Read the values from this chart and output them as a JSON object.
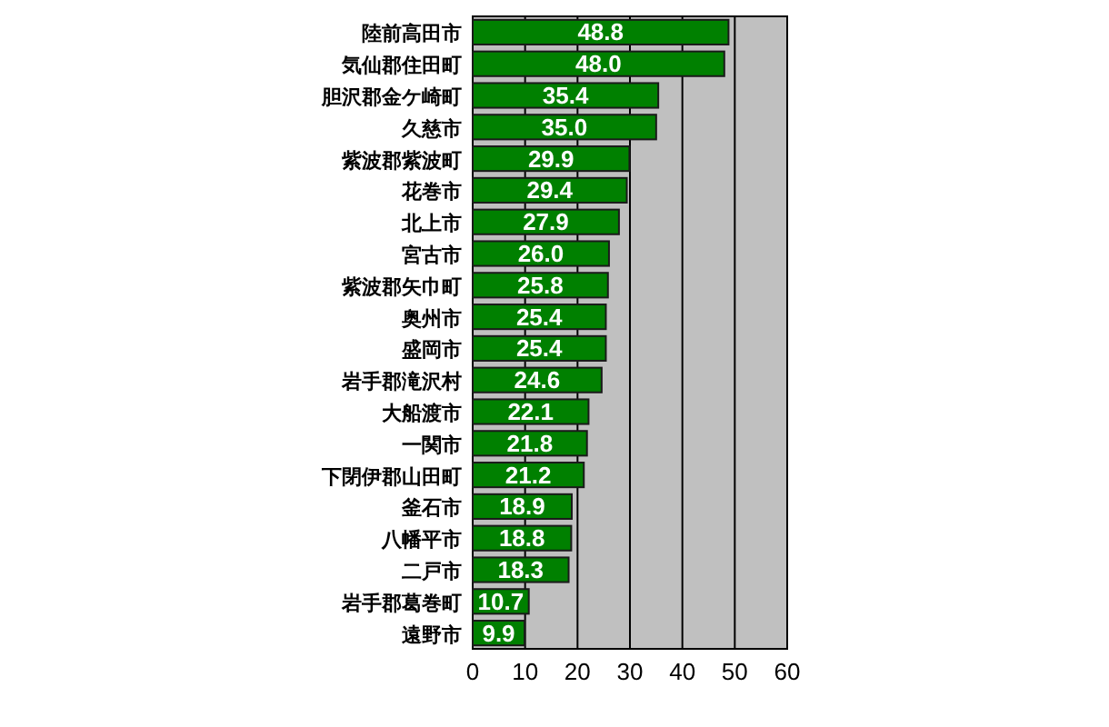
{
  "chart_data": {
    "type": "bar",
    "orientation": "horizontal",
    "categories": [
      "陸前高田市",
      "気仙郡住田町",
      "胆沢郡金ケ崎町",
      "久慈市",
      "紫波郡紫波町",
      "花巻市",
      "北上市",
      "宮古市",
      "紫波郡矢巾町",
      "奥州市",
      "盛岡市",
      "岩手郡滝沢村",
      "大船渡市",
      "一関市",
      "下閉伊郡山田町",
      "釜石市",
      "八幡平市",
      "二戸市",
      "岩手郡葛巻町",
      "遠野市"
    ],
    "values": [
      48.8,
      48.0,
      35.4,
      35.0,
      29.9,
      29.4,
      27.9,
      26.0,
      25.8,
      25.4,
      25.4,
      24.6,
      22.1,
      21.8,
      21.2,
      18.9,
      18.8,
      18.3,
      10.7,
      9.9
    ],
    "color": "#008000",
    "xlim": [
      0,
      60
    ],
    "xticks": [
      0,
      10,
      20,
      30,
      40,
      50,
      60
    ],
    "grid": "x",
    "value_labels": [
      "48.8",
      "48.0",
      "35.4",
      "35.0",
      "29.9",
      "29.4",
      "27.9",
      "26.0",
      "25.8",
      "25.4",
      "25.4",
      "24.6",
      "22.1",
      "21.8",
      "21.2",
      "18.9",
      "18.8",
      "18.3",
      "10.7",
      "9.9"
    ]
  }
}
